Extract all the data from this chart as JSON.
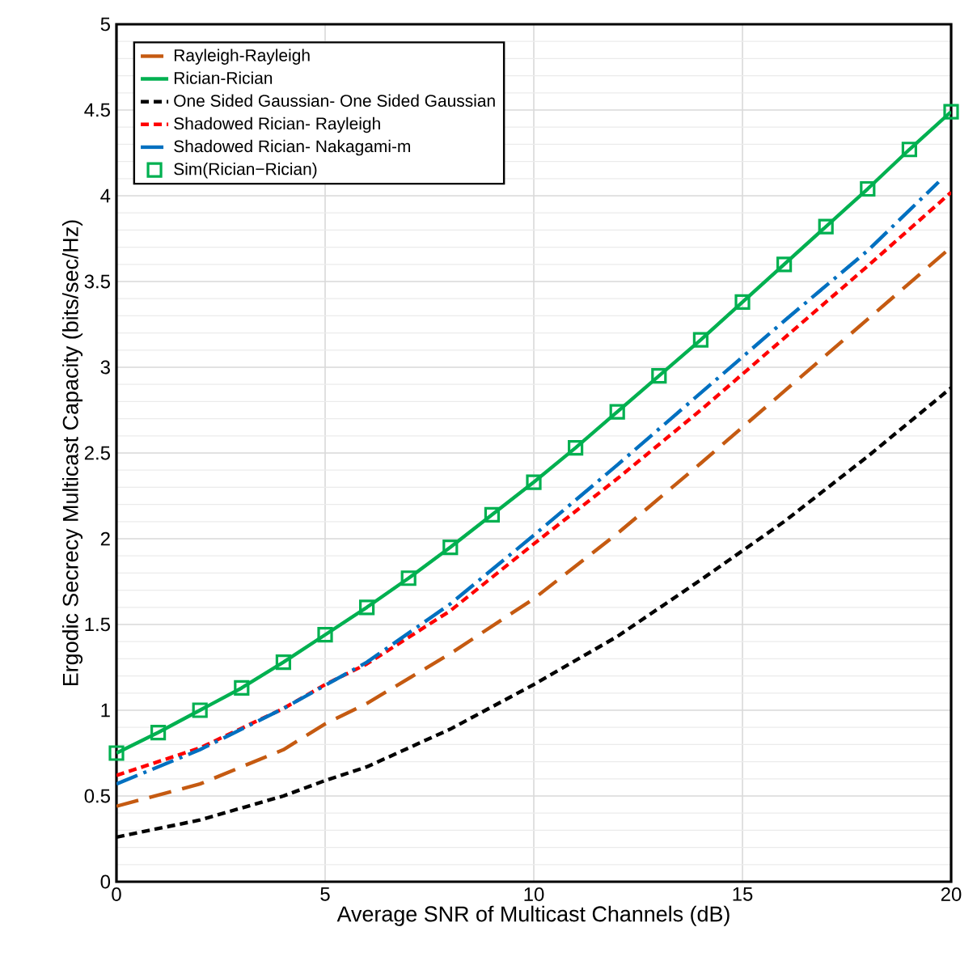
{
  "chart_data": {
    "type": "line",
    "xlabel": "Average SNR of Multicast Channels (dB)",
    "ylabel": "Ergodic Secrecy Multicast Capacity (bits/sec/Hz)",
    "xlim": [
      0,
      20
    ],
    "ylim": [
      0,
      5
    ],
    "xticks": [
      0,
      5,
      10,
      15,
      20
    ],
    "yticks": [
      0,
      0.5,
      1,
      1.5,
      2,
      2.5,
      3,
      3.5,
      4,
      4.5,
      5
    ],
    "grid": true,
    "legend": "top left",
    "series": [
      {
        "name": "Rayleigh-Rayleigh",
        "color": "#c55a11",
        "line_style": "long dashed",
        "x": [
          0,
          2,
          4,
          5,
          6,
          8,
          10,
          12,
          14,
          16,
          18,
          20
        ],
        "values": [
          0.44,
          0.57,
          0.77,
          0.92,
          1.04,
          1.33,
          1.65,
          2.03,
          2.44,
          2.86,
          3.28,
          3.7
        ]
      },
      {
        "name": "Rician-Rician",
        "color": "#00b050",
        "line_style": "solid",
        "x": [
          0,
          1,
          2,
          3,
          4,
          5,
          6,
          7,
          8,
          9,
          10,
          11,
          12,
          13,
          14,
          15,
          16,
          17,
          18,
          19,
          20
        ],
        "values": [
          0.75,
          0.87,
          1.0,
          1.13,
          1.28,
          1.44,
          1.6,
          1.77,
          1.95,
          2.14,
          2.33,
          2.53,
          2.74,
          2.95,
          3.16,
          3.38,
          3.6,
          3.82,
          4.04,
          4.27,
          4.49
        ]
      },
      {
        "name": "One Sided Gaussian- One Sided Gaussian",
        "color": "#000000",
        "line_style": "dashed",
        "x": [
          0,
          2,
          4,
          5,
          6,
          8,
          10,
          12,
          14,
          15,
          16,
          18,
          20
        ],
        "values": [
          0.26,
          0.36,
          0.5,
          0.59,
          0.67,
          0.89,
          1.15,
          1.43,
          1.76,
          1.93,
          2.1,
          2.48,
          2.88
        ]
      },
      {
        "name": "Shadowed Rician- Rayleigh",
        "color": "#ff0000",
        "line_style": "dashed",
        "x": [
          0,
          2,
          4,
          5,
          6,
          8,
          10,
          12,
          14,
          16,
          18,
          20
        ],
        "values": [
          0.62,
          0.78,
          1.01,
          1.15,
          1.27,
          1.58,
          1.97,
          2.35,
          2.75,
          3.17,
          3.59,
          4.02
        ]
      },
      {
        "name": "Shadowed Rician- Nakagami-m",
        "color": "#0070c0",
        "line_style": "dash dot",
        "x": [
          0,
          2,
          4,
          6,
          8,
          10,
          12,
          14,
          16,
          18,
          19.7
        ],
        "values": [
          0.57,
          0.77,
          1.01,
          1.28,
          1.62,
          2.02,
          2.43,
          2.85,
          3.27,
          3.68,
          4.08
        ]
      },
      {
        "name": "Sim(Rician−Rician)",
        "color": "#00b050",
        "type": "scatter",
        "marker": "square",
        "x": [
          0,
          1,
          2,
          3,
          4,
          5,
          6,
          7,
          8,
          9,
          10,
          11,
          12,
          13,
          14,
          15,
          16,
          17,
          18,
          19,
          20
        ],
        "values": [
          0.75,
          0.87,
          1.0,
          1.13,
          1.28,
          1.44,
          1.6,
          1.77,
          1.95,
          2.14,
          2.33,
          2.53,
          2.74,
          2.95,
          3.16,
          3.38,
          3.6,
          3.82,
          4.04,
          4.27,
          4.49
        ]
      }
    ]
  }
}
